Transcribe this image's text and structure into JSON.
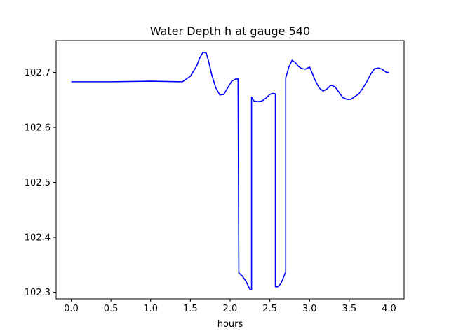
{
  "chart_data": {
    "type": "line",
    "title": "Water Depth h at gauge 540",
    "xlabel": "hours",
    "ylabel": "",
    "xlim": [
      -0.19,
      4.19
    ],
    "ylim": [
      102.288,
      102.758
    ],
    "xticks": [
      0.0,
      0.5,
      1.0,
      1.5,
      2.0,
      2.5,
      3.0,
      3.5,
      4.0
    ],
    "xtick_labels": [
      "0.0",
      "0.5",
      "1.0",
      "1.5",
      "2.0",
      "2.5",
      "3.0",
      "3.5",
      "4.0"
    ],
    "yticks": [
      102.3,
      102.4,
      102.5,
      102.6,
      102.7
    ],
    "ytick_labels": [
      "102.3",
      "102.4",
      "102.5",
      "102.6",
      "102.7"
    ],
    "grid": false,
    "series": [
      {
        "color": "#0000ff",
        "x": [
          0.0,
          0.5,
          1.0,
          1.4,
          1.43,
          1.5,
          1.58,
          1.62,
          1.66,
          1.7,
          1.73,
          1.77,
          1.82,
          1.87,
          1.92,
          1.97,
          2.02,
          2.07,
          2.1,
          2.11,
          2.11,
          2.15,
          2.2,
          2.25,
          2.27,
          2.27,
          2.3,
          2.35,
          2.4,
          2.45,
          2.5,
          2.54,
          2.57,
          2.57,
          2.6,
          2.64,
          2.68,
          2.7,
          2.7,
          2.74,
          2.78,
          2.82,
          2.86,
          2.9,
          2.95,
          3.0,
          3.03,
          3.07,
          3.12,
          3.17,
          3.22,
          3.27,
          3.32,
          3.37,
          3.42,
          3.47,
          3.52,
          3.57,
          3.62,
          3.67,
          3.72,
          3.77,
          3.82,
          3.87,
          3.91,
          3.94,
          3.97,
          4.0
        ],
        "y": [
          102.683,
          102.683,
          102.684,
          102.683,
          102.686,
          102.693,
          102.712,
          102.727,
          102.737,
          102.735,
          102.72,
          102.695,
          102.672,
          102.659,
          102.66,
          102.672,
          102.684,
          102.688,
          102.688,
          102.335,
          102.335,
          102.33,
          102.32,
          102.305,
          102.305,
          102.655,
          102.648,
          102.647,
          102.648,
          102.653,
          102.66,
          102.662,
          102.661,
          102.31,
          102.31,
          102.316,
          102.33,
          102.337,
          102.69,
          102.71,
          102.722,
          102.718,
          102.711,
          102.707,
          102.706,
          102.71,
          102.7,
          102.686,
          102.672,
          102.666,
          102.67,
          102.677,
          102.674,
          102.664,
          102.654,
          102.651,
          102.651,
          102.656,
          102.661,
          102.671,
          102.683,
          102.697,
          102.707,
          102.708,
          102.706,
          102.703,
          102.7,
          102.7
        ]
      }
    ]
  }
}
